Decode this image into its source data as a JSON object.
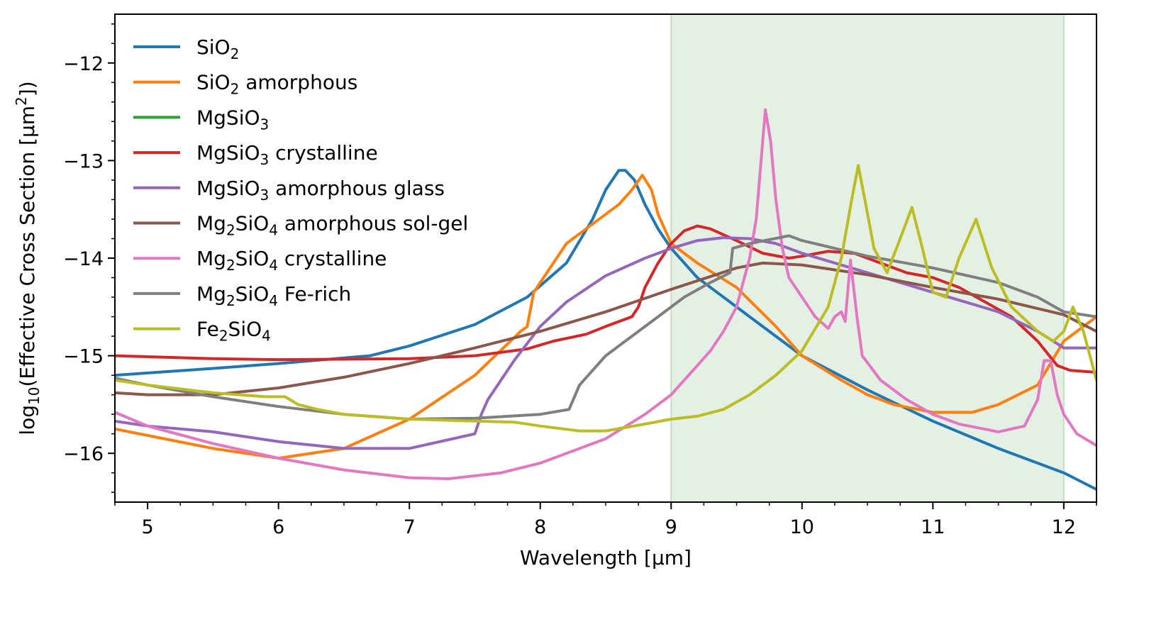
{
  "chart_data": {
    "type": "line",
    "title": "",
    "xlabel": "Wavelength [μm]",
    "ylabel": "log10(Effective Cross Section [μm2])",
    "ylabel_parts": {
      "pre": "log",
      "sub": "10",
      "mid": "(Effective Cross Section [μm",
      "sup": "2",
      "post": "])"
    },
    "xlim": [
      4.75,
      12.25
    ],
    "ylim": [
      -16.5,
      -11.5
    ],
    "xticks": [
      5,
      6,
      7,
      8,
      9,
      10,
      11,
      12
    ],
    "xtick_labels": [
      "5",
      "6",
      "7",
      "8",
      "9",
      "10",
      "11",
      "12"
    ],
    "yticks": [
      -16,
      -15,
      -14,
      -13,
      -12
    ],
    "ytick_labels": [
      "−16",
      "−15",
      "−14",
      "−13",
      "−12"
    ],
    "shaded_region": {
      "x": [
        9.0,
        12.0
      ],
      "color": "#e4f0e4",
      "edge_color": "#c4dfc4"
    },
    "legend_location": "top-left",
    "series": [
      {
        "name": "SiO2",
        "label_parts": [
          [
            "SiO",
            ""
          ],
          [
            "2",
            "sub"
          ]
        ],
        "color": "#1f77b4",
        "points": [
          [
            4.75,
            -15.2
          ],
          [
            5.5,
            -15.13
          ],
          [
            6.0,
            -15.08
          ],
          [
            6.7,
            -15.0
          ],
          [
            7.0,
            -14.9
          ],
          [
            7.5,
            -14.68
          ],
          [
            7.9,
            -14.4
          ],
          [
            8.2,
            -14.05
          ],
          [
            8.4,
            -13.6
          ],
          [
            8.5,
            -13.3
          ],
          [
            8.6,
            -13.1
          ],
          [
            8.65,
            -13.1
          ],
          [
            8.72,
            -13.2
          ],
          [
            8.8,
            -13.45
          ],
          [
            8.9,
            -13.7
          ],
          [
            9.0,
            -13.9
          ],
          [
            9.2,
            -14.2
          ],
          [
            9.4,
            -14.4
          ],
          [
            9.6,
            -14.6
          ],
          [
            9.8,
            -14.8
          ],
          [
            10.0,
            -15.0
          ],
          [
            10.5,
            -15.35
          ],
          [
            11.0,
            -15.67
          ],
          [
            11.5,
            -15.95
          ],
          [
            12.0,
            -16.2
          ],
          [
            12.25,
            -16.37
          ]
        ]
      },
      {
        "name": "SiO2 amorphous",
        "label_parts": [
          [
            "SiO",
            ""
          ],
          [
            "2",
            "sub"
          ],
          [
            " amorphous",
            ""
          ]
        ],
        "color": "#ff7f0e",
        "points": [
          [
            4.75,
            -15.75
          ],
          [
            5.5,
            -15.95
          ],
          [
            6.0,
            -16.05
          ],
          [
            6.5,
            -15.95
          ],
          [
            7.0,
            -15.65
          ],
          [
            7.5,
            -15.2
          ],
          [
            7.85,
            -14.75
          ],
          [
            7.9,
            -14.7
          ],
          [
            7.95,
            -14.35
          ],
          [
            8.0,
            -14.25
          ],
          [
            8.1,
            -14.05
          ],
          [
            8.2,
            -13.85
          ],
          [
            8.4,
            -13.65
          ],
          [
            8.6,
            -13.45
          ],
          [
            8.7,
            -13.3
          ],
          [
            8.78,
            -13.15
          ],
          [
            8.85,
            -13.3
          ],
          [
            8.9,
            -13.55
          ],
          [
            9.0,
            -13.85
          ],
          [
            9.2,
            -14.05
          ],
          [
            9.5,
            -14.3
          ],
          [
            9.8,
            -14.7
          ],
          [
            10.0,
            -15.0
          ],
          [
            10.3,
            -15.25
          ],
          [
            10.5,
            -15.4
          ],
          [
            10.7,
            -15.5
          ],
          [
            11.0,
            -15.58
          ],
          [
            11.3,
            -15.58
          ],
          [
            11.5,
            -15.5
          ],
          [
            11.8,
            -15.3
          ],
          [
            12.0,
            -14.85
          ],
          [
            12.25,
            -14.6
          ]
        ]
      },
      {
        "name": "MgSiO3",
        "label_parts": [
          [
            "MgSiO",
            ""
          ],
          [
            "3",
            "sub"
          ]
        ],
        "color": "#2ca02c",
        "points": []
      },
      {
        "name": "MgSiO3 crystalline",
        "label_parts": [
          [
            "MgSiO",
            ""
          ],
          [
            "3",
            "sub"
          ],
          [
            " crystalline",
            ""
          ]
        ],
        "color": "#d62728",
        "points": [
          [
            4.75,
            -15.0
          ],
          [
            5.5,
            -15.03
          ],
          [
            6.0,
            -15.04
          ],
          [
            7.0,
            -15.03
          ],
          [
            7.5,
            -15.0
          ],
          [
            7.9,
            -14.93
          ],
          [
            8.1,
            -14.85
          ],
          [
            8.35,
            -14.78
          ],
          [
            8.5,
            -14.7
          ],
          [
            8.7,
            -14.6
          ],
          [
            8.75,
            -14.5
          ],
          [
            8.8,
            -14.3
          ],
          [
            8.9,
            -14.05
          ],
          [
            9.0,
            -13.85
          ],
          [
            9.1,
            -13.72
          ],
          [
            9.2,
            -13.67
          ],
          [
            9.3,
            -13.7
          ],
          [
            9.5,
            -13.82
          ],
          [
            9.7,
            -13.95
          ],
          [
            9.9,
            -14.0
          ],
          [
            10.0,
            -13.98
          ],
          [
            10.2,
            -13.93
          ],
          [
            10.4,
            -13.95
          ],
          [
            10.6,
            -14.05
          ],
          [
            10.8,
            -14.15
          ],
          [
            11.0,
            -14.2
          ],
          [
            11.2,
            -14.3
          ],
          [
            11.4,
            -14.45
          ],
          [
            11.6,
            -14.6
          ],
          [
            11.8,
            -14.85
          ],
          [
            11.95,
            -15.1
          ],
          [
            12.05,
            -15.15
          ],
          [
            12.25,
            -15.17
          ]
        ]
      },
      {
        "name": "MgSiO3 amorphous glass",
        "label_parts": [
          [
            "MgSiO",
            ""
          ],
          [
            "3",
            "sub"
          ],
          [
            " amorphous glass",
            ""
          ]
        ],
        "color": "#9467bd",
        "points": [
          [
            4.75,
            -15.67
          ],
          [
            5.0,
            -15.72
          ],
          [
            5.5,
            -15.78
          ],
          [
            6.0,
            -15.88
          ],
          [
            6.5,
            -15.95
          ],
          [
            7.0,
            -15.95
          ],
          [
            7.5,
            -15.8
          ],
          [
            7.55,
            -15.6
          ],
          [
            7.6,
            -15.45
          ],
          [
            7.8,
            -15.05
          ],
          [
            8.0,
            -14.7
          ],
          [
            8.2,
            -14.45
          ],
          [
            8.5,
            -14.18
          ],
          [
            8.8,
            -14.0
          ],
          [
            9.0,
            -13.9
          ],
          [
            9.2,
            -13.82
          ],
          [
            9.4,
            -13.79
          ],
          [
            9.6,
            -13.8
          ],
          [
            9.8,
            -13.85
          ],
          [
            10.0,
            -13.95
          ],
          [
            10.5,
            -14.15
          ],
          [
            11.0,
            -14.35
          ],
          [
            11.5,
            -14.55
          ],
          [
            11.8,
            -14.75
          ],
          [
            12.0,
            -14.92
          ],
          [
            12.25,
            -14.92
          ]
        ]
      },
      {
        "name": "Mg2SiO4 amorphous sol-gel",
        "label_parts": [
          [
            "Mg",
            ""
          ],
          [
            "2",
            "sub"
          ],
          [
            "SiO",
            ""
          ],
          [
            "4",
            "sub"
          ],
          [
            " amorphous sol-gel",
            ""
          ]
        ],
        "color": "#8c564b",
        "points": [
          [
            4.75,
            -15.38
          ],
          [
            5.0,
            -15.4
          ],
          [
            5.5,
            -15.4
          ],
          [
            6.0,
            -15.33
          ],
          [
            6.5,
            -15.22
          ],
          [
            7.0,
            -15.08
          ],
          [
            7.5,
            -14.92
          ],
          [
            8.0,
            -14.75
          ],
          [
            8.5,
            -14.55
          ],
          [
            9.0,
            -14.32
          ],
          [
            9.5,
            -14.1
          ],
          [
            9.7,
            -14.05
          ],
          [
            10.0,
            -14.07
          ],
          [
            10.5,
            -14.17
          ],
          [
            11.0,
            -14.3
          ],
          [
            11.5,
            -14.42
          ],
          [
            12.0,
            -14.58
          ],
          [
            12.25,
            -14.75
          ]
        ]
      },
      {
        "name": "Mg2SiO4 crystalline",
        "label_parts": [
          [
            "Mg",
            ""
          ],
          [
            "2",
            "sub"
          ],
          [
            "SiO",
            ""
          ],
          [
            "4",
            "sub"
          ],
          [
            " crystalline",
            ""
          ]
        ],
        "color": "#e377c2",
        "points": [
          [
            4.75,
            -15.58
          ],
          [
            5.0,
            -15.72
          ],
          [
            5.5,
            -15.9
          ],
          [
            6.0,
            -16.05
          ],
          [
            6.5,
            -16.17
          ],
          [
            7.0,
            -16.25
          ],
          [
            7.3,
            -16.26
          ],
          [
            7.7,
            -16.2
          ],
          [
            8.0,
            -16.1
          ],
          [
            8.5,
            -15.85
          ],
          [
            8.8,
            -15.6
          ],
          [
            9.0,
            -15.4
          ],
          [
            9.2,
            -15.1
          ],
          [
            9.3,
            -14.95
          ],
          [
            9.4,
            -14.75
          ],
          [
            9.5,
            -14.5
          ],
          [
            9.6,
            -14.0
          ],
          [
            9.65,
            -13.6
          ],
          [
            9.7,
            -12.8
          ],
          [
            9.72,
            -12.48
          ],
          [
            9.76,
            -12.8
          ],
          [
            9.8,
            -13.4
          ],
          [
            9.85,
            -13.9
          ],
          [
            9.9,
            -14.2
          ],
          [
            10.0,
            -14.4
          ],
          [
            10.1,
            -14.6
          ],
          [
            10.2,
            -14.72
          ],
          [
            10.25,
            -14.6
          ],
          [
            10.3,
            -14.55
          ],
          [
            10.33,
            -14.65
          ],
          [
            10.37,
            -14.02
          ],
          [
            10.42,
            -14.6
          ],
          [
            10.46,
            -15.0
          ],
          [
            10.6,
            -15.25
          ],
          [
            10.8,
            -15.45
          ],
          [
            11.0,
            -15.6
          ],
          [
            11.2,
            -15.7
          ],
          [
            11.5,
            -15.78
          ],
          [
            11.7,
            -15.72
          ],
          [
            11.8,
            -15.45
          ],
          [
            11.85,
            -15.05
          ],
          [
            11.9,
            -15.05
          ],
          [
            11.95,
            -15.4
          ],
          [
            12.0,
            -15.6
          ],
          [
            12.1,
            -15.8
          ],
          [
            12.25,
            -15.92
          ]
        ]
      },
      {
        "name": "Mg2SiO4 Fe-rich",
        "label_parts": [
          [
            "Mg",
            ""
          ],
          [
            "2",
            "sub"
          ],
          [
            "SiO",
            ""
          ],
          [
            "4",
            "sub"
          ],
          [
            " Fe-rich",
            ""
          ]
        ],
        "color": "#7f7f7f",
        "points": [
          [
            4.75,
            -15.23
          ],
          [
            5.0,
            -15.3
          ],
          [
            5.5,
            -15.42
          ],
          [
            6.0,
            -15.52
          ],
          [
            6.5,
            -15.6
          ],
          [
            7.0,
            -15.65
          ],
          [
            7.5,
            -15.64
          ],
          [
            8.0,
            -15.6
          ],
          [
            8.22,
            -15.55
          ],
          [
            8.3,
            -15.3
          ],
          [
            8.5,
            -15.0
          ],
          [
            8.7,
            -14.8
          ],
          [
            8.9,
            -14.6
          ],
          [
            9.1,
            -14.4
          ],
          [
            9.3,
            -14.25
          ],
          [
            9.45,
            -14.15
          ],
          [
            9.47,
            -13.9
          ],
          [
            9.6,
            -13.85
          ],
          [
            9.9,
            -13.77
          ],
          [
            10.0,
            -13.82
          ],
          [
            10.5,
            -13.98
          ],
          [
            11.0,
            -14.1
          ],
          [
            11.5,
            -14.25
          ],
          [
            11.8,
            -14.4
          ],
          [
            12.0,
            -14.55
          ],
          [
            12.25,
            -14.6
          ]
        ]
      },
      {
        "name": "Fe2SiO4",
        "label_parts": [
          [
            "Fe",
            ""
          ],
          [
            "2",
            "sub"
          ],
          [
            "SiO",
            ""
          ],
          [
            "4",
            "sub"
          ]
        ],
        "color": "#bcbd22",
        "points": [
          [
            4.75,
            -15.25
          ],
          [
            5.0,
            -15.3
          ],
          [
            5.5,
            -15.38
          ],
          [
            5.9,
            -15.42
          ],
          [
            6.05,
            -15.42
          ],
          [
            6.15,
            -15.5
          ],
          [
            6.3,
            -15.55
          ],
          [
            6.5,
            -15.6
          ],
          [
            7.0,
            -15.65
          ],
          [
            7.5,
            -15.67
          ],
          [
            7.8,
            -15.68
          ],
          [
            8.0,
            -15.72
          ],
          [
            8.3,
            -15.77
          ],
          [
            8.5,
            -15.77
          ],
          [
            8.8,
            -15.7
          ],
          [
            9.0,
            -15.65
          ],
          [
            9.2,
            -15.62
          ],
          [
            9.4,
            -15.55
          ],
          [
            9.6,
            -15.4
          ],
          [
            9.8,
            -15.2
          ],
          [
            10.0,
            -14.95
          ],
          [
            10.2,
            -14.5
          ],
          [
            10.3,
            -14.0
          ],
          [
            10.38,
            -13.4
          ],
          [
            10.43,
            -13.05
          ],
          [
            10.48,
            -13.4
          ],
          [
            10.55,
            -13.9
          ],
          [
            10.65,
            -14.15
          ],
          [
            10.75,
            -13.8
          ],
          [
            10.84,
            -13.48
          ],
          [
            10.92,
            -13.9
          ],
          [
            11.0,
            -14.35
          ],
          [
            11.1,
            -14.4
          ],
          [
            11.2,
            -14.0
          ],
          [
            11.33,
            -13.6
          ],
          [
            11.45,
            -14.1
          ],
          [
            11.6,
            -14.5
          ],
          [
            11.8,
            -14.75
          ],
          [
            11.92,
            -14.85
          ],
          [
            12.0,
            -14.75
          ],
          [
            12.07,
            -14.5
          ],
          [
            12.15,
            -14.75
          ],
          [
            12.25,
            -15.25
          ]
        ]
      }
    ]
  }
}
